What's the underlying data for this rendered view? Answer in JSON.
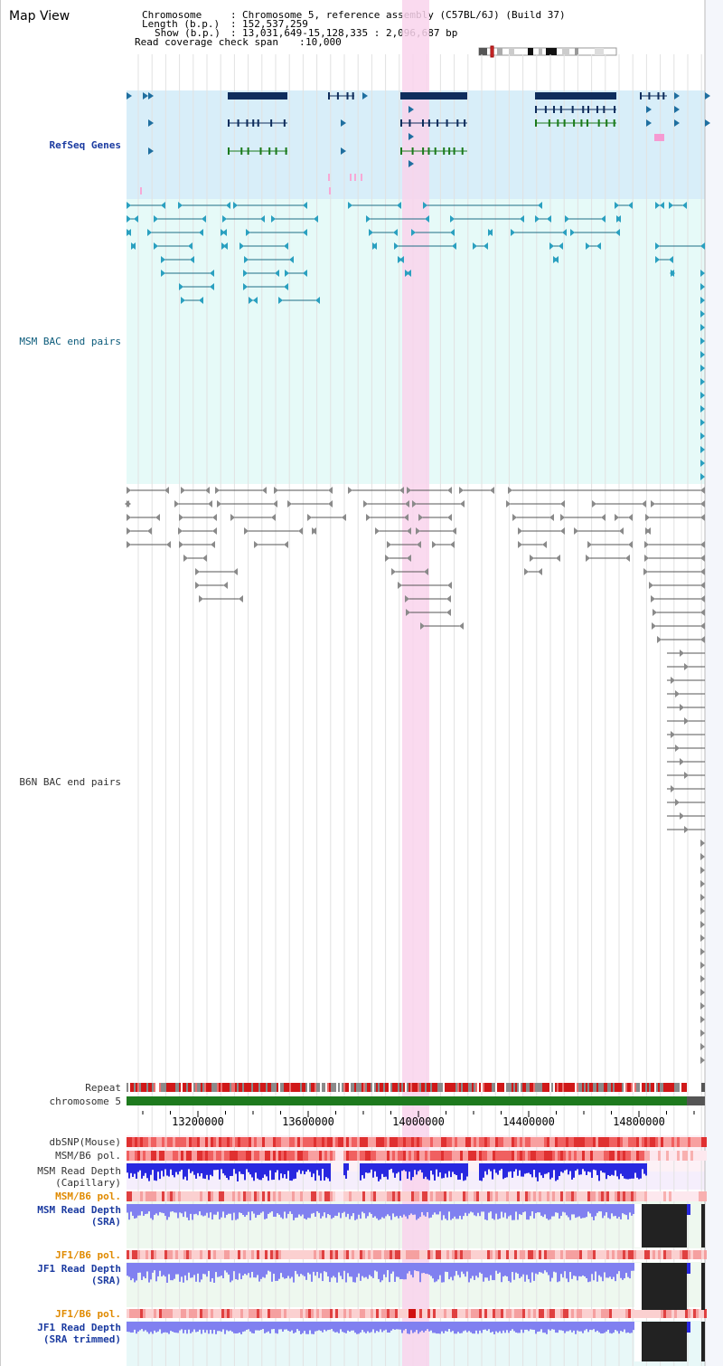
{
  "title": "Map View",
  "info": {
    "chromosome_label": "Chromosome",
    "chromosome_value": "Chromosome 5, reference assembly (C57BL/6J) (Build 37)",
    "length_label": "Length (b.p.)",
    "length_value": "152,537,259",
    "show_label": "Show (b.p.)",
    "show_value": "13,031,649-15,128,335 : 2,096,687 bp",
    "span_label": "Read coverage check span",
    "span_value": "10,000"
  },
  "tracks": {
    "refseq": "RefSeq Genes",
    "msm_bac": "MSM BAC end pairs",
    "b6n_bac": "B6N BAC end pairs",
    "repeat": "Repeat",
    "chromosome": "chromosome 5",
    "dbsnp": "dbSNP(Mouse)",
    "msm_b6_pol": "MSM/B6 pol.",
    "msm_read_depth_cap_1": "MSM Read Depth",
    "msm_read_depth_cap_2": "(Capillary)",
    "msm_b6_pol_2": "MSM/B6 pol.",
    "msm_read_depth_sra_1": "MSM Read Depth",
    "msm_read_depth_sra_2": "(SRA)",
    "jf1_b6_pol": "JF1/B6 pol.",
    "jf1_read_depth_sra_1": "JF1 Read Depth",
    "jf1_read_depth_sra_2": "(SRA)",
    "jf1_b6_pol_2": "JF1/B6 pol.",
    "jf1_read_depth_trim_1": "JF1 Read Depth",
    "jf1_read_depth_trim_2": "(SRA trimmed)"
  },
  "axis": {
    "ticks": [
      "13200000",
      "13600000",
      "14000000",
      "14400000",
      "14800000"
    ]
  },
  "colors": {
    "refseq_bg": "#d8eef9",
    "bac_bg": "#e6faf8",
    "highlight": "#f9d3ec",
    "gene_dark": "#0f2d5c",
    "gene_green": "#1b7a1b",
    "chromosome_bar": "#1e7a1e",
    "depth_blue": "#2828e0",
    "depth_light": "#8080f0"
  }
}
